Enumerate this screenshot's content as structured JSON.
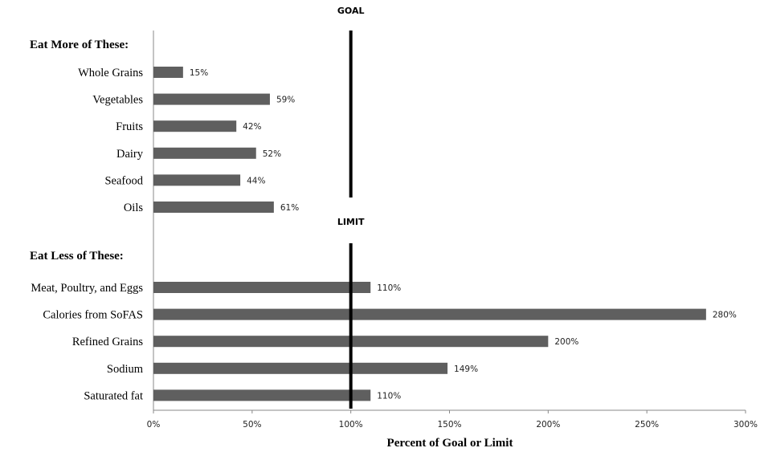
{
  "chart_data": {
    "type": "bar",
    "orientation": "horizontal",
    "title": "",
    "xlabel": "Percent of Goal or Limit",
    "ylabel": "",
    "xlim": [
      0,
      300
    ],
    "xticks": [
      "0%",
      "50%",
      "100%",
      "150%",
      "200%",
      "250%",
      "300%"
    ],
    "bar_color": "#5f5f5f",
    "grid": false,
    "groups": [
      {
        "heading": "Eat More of These:",
        "reference_label": "GOAL",
        "reference_value": 100,
        "categories": [
          "Whole Grains",
          "Vegetables",
          "Fruits",
          "Dairy",
          "Seafood",
          "Oils"
        ],
        "values": [
          15,
          59,
          42,
          52,
          44,
          61
        ],
        "labels": [
          "15%",
          "59%",
          "42%",
          "52%",
          "44%",
          "61%"
        ]
      },
      {
        "heading": "Eat Less of These:",
        "reference_label": "LIMIT",
        "reference_value": 100,
        "categories": [
          "Meat, Poultry, and Eggs",
          "Calories from SoFAS",
          "Refined Grains",
          "Sodium",
          "Saturated fat"
        ],
        "values": [
          110,
          280,
          200,
          149,
          110
        ],
        "labels": [
          "110%",
          "280%",
          "200%",
          "149%",
          "110%"
        ]
      }
    ]
  }
}
